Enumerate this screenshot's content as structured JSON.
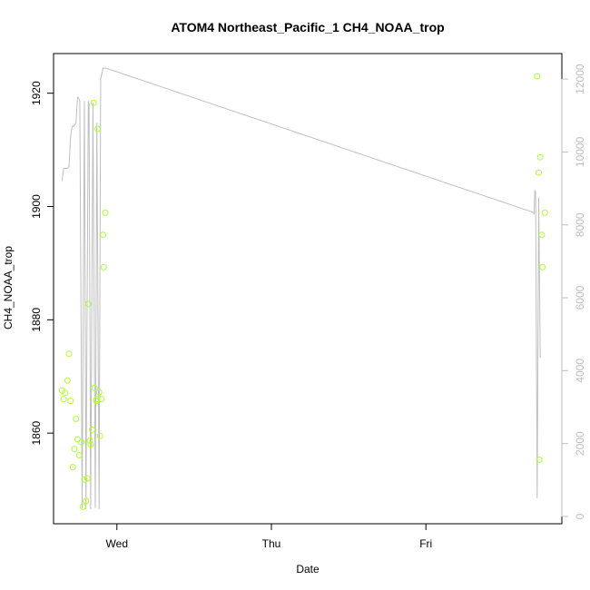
{
  "chart_data": {
    "type": "scatter",
    "title": "ATOM4 Northeast_Pacific_1 CH4_NOAA_trop",
    "xlabel": "Date",
    "ylabel": "CH4_NOAA_trop",
    "x_ticks": [
      "Wed",
      "Thu",
      "Fri"
    ],
    "x_tick_days": [
      1,
      2,
      3
    ],
    "xlim_days": [
      0.59,
      3.88
    ],
    "ylim": [
      1844,
      1927
    ],
    "y_ticks": [
      1860,
      1880,
      1900,
      1920
    ],
    "y2lim": [
      -200,
      12700
    ],
    "y2_ticks": [
      0,
      2000,
      4000,
      6000,
      8000,
      10000,
      12000
    ],
    "colors": {
      "points": "#adff2f",
      "line": "#bebebe",
      "axis": "#000000",
      "axis2": "#bebebe"
    },
    "series": [
      {
        "type": "points",
        "axis": "left",
        "x_days": [
          0.645,
          0.655,
          0.665,
          0.68,
          0.69,
          0.7,
          0.715,
          0.725,
          0.735,
          0.745,
          0.755,
          0.77,
          0.78,
          0.79,
          0.8,
          0.81,
          0.815,
          0.825,
          0.83,
          0.84,
          0.85,
          0.855,
          0.865,
          0.87,
          0.875,
          0.885,
          0.89,
          0.9,
          0.91,
          0.915,
          0.925,
          3.72,
          3.73,
          3.735,
          3.74,
          3.75,
          3.755,
          3.77
        ],
        "y": [
          1867.5,
          1866.0,
          1867.1,
          1869.3,
          1874.0,
          1865.7,
          1854.0,
          1857.2,
          1862.5,
          1858.9,
          1856.1,
          1858.4,
          1847.0,
          1851.8,
          1848.0,
          1852.0,
          1882.8,
          1858.7,
          1858.0,
          1860.6,
          1918.3,
          1868.0,
          1865.7,
          1866.0,
          1913.7,
          1867.2,
          1859.5,
          1866.0,
          1895.0,
          1889.3,
          1898.9,
          1923.0,
          1906.0,
          1855.3,
          1908.7,
          1895.0,
          1889.3,
          1898.9
        ]
      },
      {
        "type": "line",
        "axis": "right",
        "x_days": [
          0.645,
          0.655,
          0.68,
          0.69,
          0.7,
          0.71,
          0.72,
          0.735,
          0.745,
          0.75,
          0.76,
          0.775,
          0.79,
          0.8,
          0.815,
          0.82,
          0.83,
          0.845,
          0.86,
          0.87,
          0.885,
          0.895,
          0.91,
          0.93,
          3.69,
          3.7,
          3.705,
          3.71,
          3.72,
          3.73,
          3.74
        ],
        "y": [
          9200,
          9550,
          9550,
          9600,
          10400,
          10700,
          10700,
          10800,
          11500,
          11500,
          11400,
          230,
          11400,
          200,
          11400,
          11300,
          200,
          11350,
          230,
          10800,
          200,
          12000,
          12300,
          12300,
          8350,
          8300,
          8950,
          8900,
          500,
          8750,
          4350
        ]
      }
    ]
  }
}
